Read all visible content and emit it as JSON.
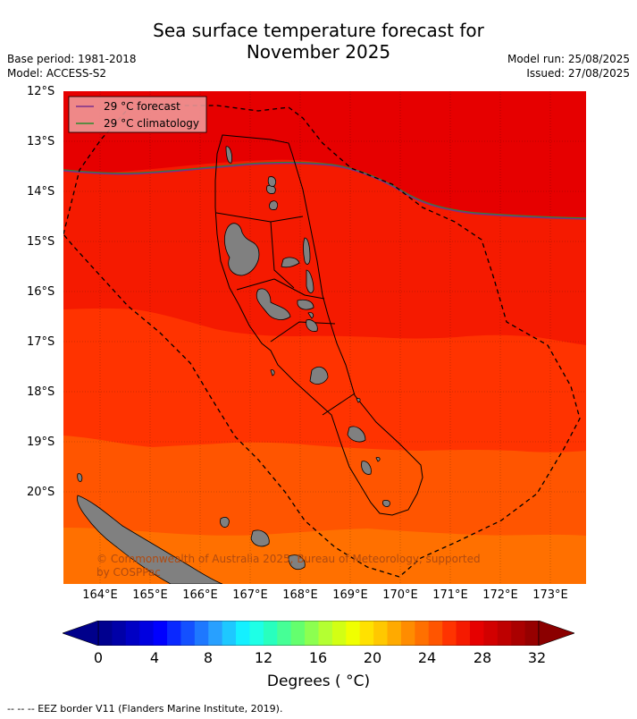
{
  "title_line1": "Sea surface temperature forecast for",
  "title_line2": "November 2025",
  "meta_left": {
    "base_period": "Base period: 1981-2018",
    "model": "Model: ACCESS-S2"
  },
  "meta_right": {
    "model_run": "Model run: 25/08/2025",
    "issued": "Issued: 27/08/2025"
  },
  "legend": {
    "forecast": "29 °C  forecast",
    "climatology": "29 °C  climatology"
  },
  "copyright": {
    "line1": "© Commonwealth of Australia 2025, Bureau of Meteorology, supported",
    "line2": "by COSPPac"
  },
  "lat_labels": [
    "12°S",
    "13°S",
    "14°S",
    "15°S",
    "16°S",
    "17°S",
    "18°S",
    "19°S",
    "20°S"
  ],
  "lon_labels": [
    "164°E",
    "165°E",
    "166°E",
    "167°E",
    "168°E",
    "169°E",
    "170°E",
    "171°E",
    "172°E",
    "173°E"
  ],
  "colorbar": {
    "ticks": [
      "0",
      "4",
      "8",
      "12",
      "16",
      "20",
      "24",
      "28",
      "32"
    ],
    "label": "Degrees ( °C)"
  },
  "footnote": "--  --  -- EEZ border V11 (Flanders Marine Institute, 2019).",
  "colors": {
    "temp_30": "#e60000",
    "temp_29": "#f51a00",
    "temp_28": "#ff3300",
    "temp_27": "#ff5500",
    "temp_26": "#ff7000",
    "land": "#808080",
    "forecast_line": "#7b2f8a",
    "climatology_line": "#2c8b2c"
  }
}
